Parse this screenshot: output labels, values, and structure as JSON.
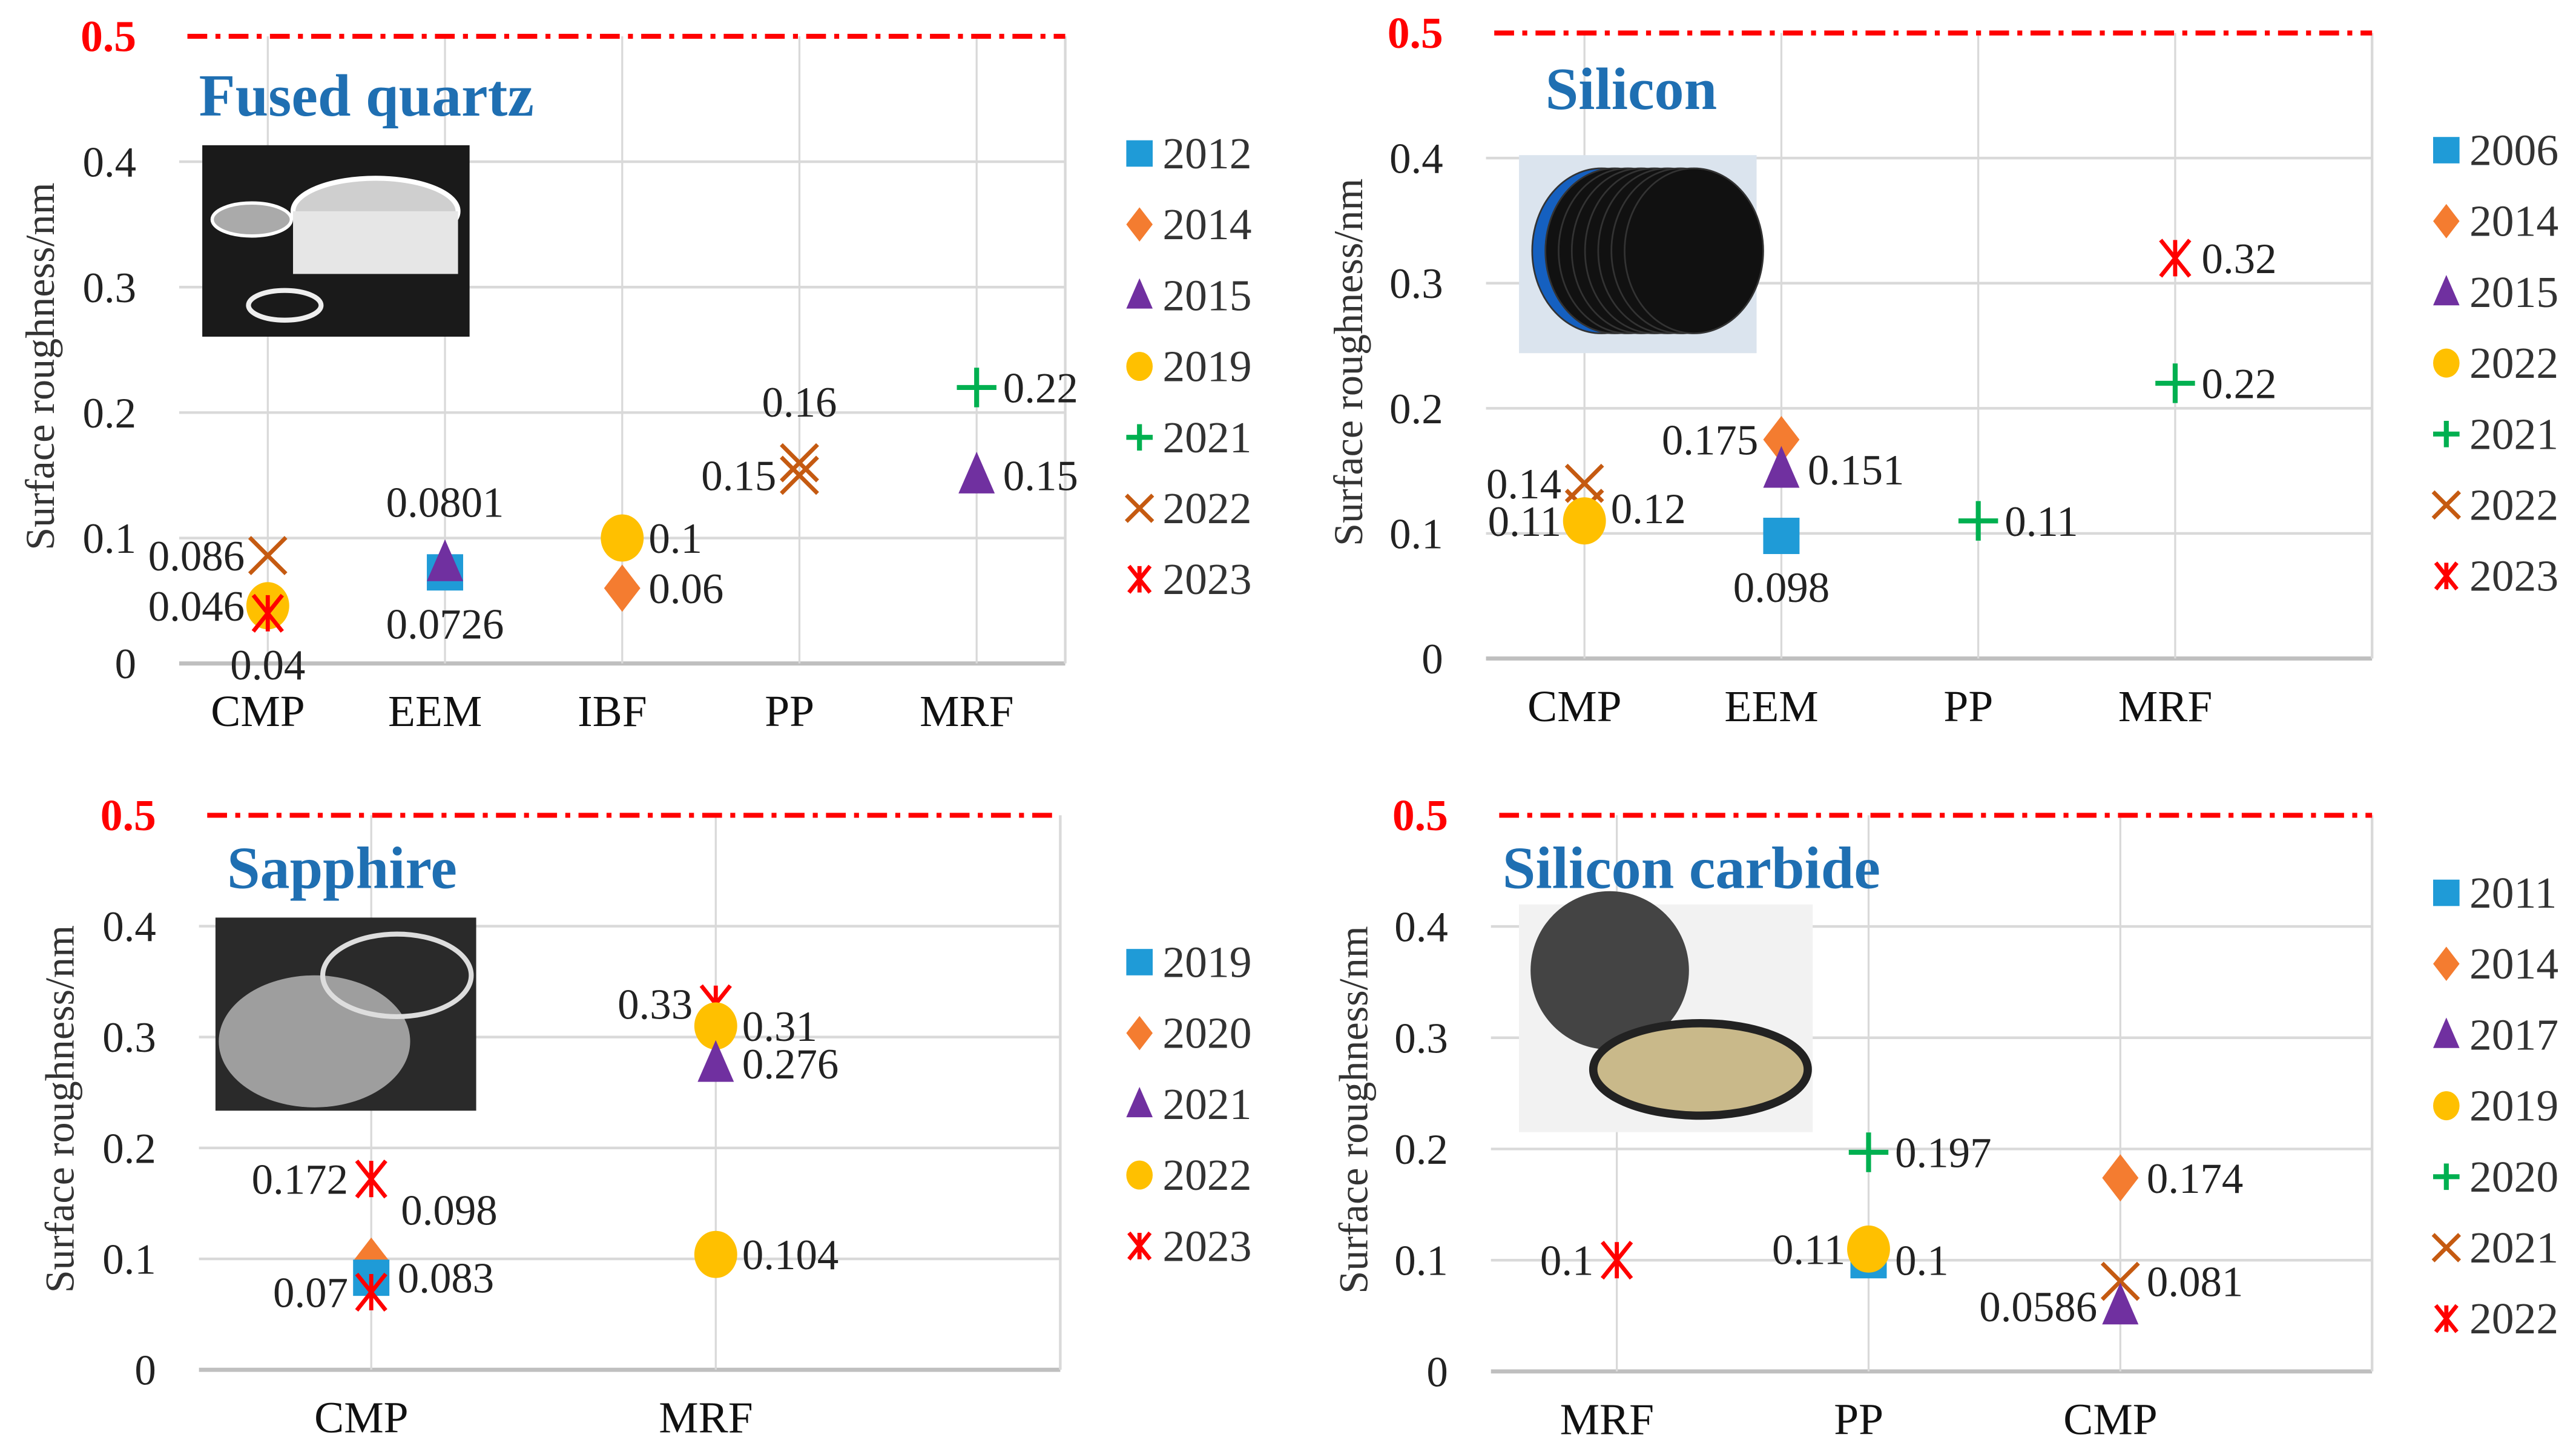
{
  "colors": {
    "2012": "#1f9bd7",
    "square": "#1f9bd7",
    "diamond": "#f47c30",
    "triangle": "#7030a0",
    "circle": "#ffc000",
    "plus": "#00b050",
    "x": "#c55a11",
    "asterisk": "#ff0000",
    "title": "#1f6fb2",
    "limit": "#ff0000",
    "grid": "#d9d9d9"
  },
  "chart_data": [
    {
      "type": "scatter",
      "title": "Fused quartz",
      "ylabel": "Surface roughness/nm",
      "ylim": [
        0,
        0.5
      ],
      "yticks": [
        "0",
        "0.1",
        "0.2",
        "0.3",
        "0.4",
        "0.5"
      ],
      "limit_line": 0.5,
      "legend_placement": "right",
      "categories": [
        "CMP",
        "EEM",
        "IBF",
        "PP",
        "MRF"
      ],
      "series": [
        {
          "name": "2012",
          "marker": "square"
        },
        {
          "name": "2014",
          "marker": "diamond"
        },
        {
          "name": "2015",
          "marker": "triangle"
        },
        {
          "name": "2019",
          "marker": "circle"
        },
        {
          "name": "2021",
          "marker": "plus"
        },
        {
          "name": "2022",
          "marker": "x"
        },
        {
          "name": "2023",
          "marker": "asterisk"
        }
      ],
      "points": [
        {
          "category": "CMP",
          "series": "2022",
          "value": 0.086,
          "label": "0.086",
          "label_side": "left"
        },
        {
          "category": "CMP",
          "series": "2019",
          "value": 0.046,
          "label": "0.046",
          "label_side": "left"
        },
        {
          "category": "CMP",
          "series": "2023",
          "value": 0.04,
          "label": "0.04",
          "label_side": "below"
        },
        {
          "category": "EEM",
          "series": "2012",
          "value": 0.0726,
          "label": "0.0726",
          "label_side": "below"
        },
        {
          "category": "EEM",
          "series": "2015",
          "value": 0.0801,
          "label": "0.0801",
          "label_side": "above"
        },
        {
          "category": "IBF",
          "series": "2019",
          "value": 0.1,
          "label": "0.1",
          "label_side": "right"
        },
        {
          "category": "IBF",
          "series": "2014",
          "value": 0.06,
          "label": "0.06",
          "label_side": "right"
        },
        {
          "category": "PP",
          "series": "2022",
          "value": 0.16,
          "label": "0.16",
          "label_side": "above"
        },
        {
          "category": "PP",
          "series": "2022",
          "value": 0.15,
          "label": "0.15",
          "label_side": "left"
        },
        {
          "category": "MRF",
          "series": "2021",
          "value": 0.22,
          "label": "0.22",
          "label_side": "right"
        },
        {
          "category": "MRF",
          "series": "2015",
          "value": 0.15,
          "label": "0.15",
          "label_side": "right"
        }
      ]
    },
    {
      "type": "scatter",
      "title": "Silicon",
      "ylabel": "Surface roughness/nm",
      "ylim": [
        0,
        0.5
      ],
      "yticks": [
        "0",
        "0.1",
        "0.2",
        "0.3",
        "0.4",
        "0.5"
      ],
      "limit_line": 0.5,
      "legend_placement": "right",
      "categories": [
        "CMP",
        "EEM",
        "PP",
        "MRF"
      ],
      "series": [
        {
          "name": "2006",
          "marker": "square"
        },
        {
          "name": "2014",
          "marker": "diamond"
        },
        {
          "name": "2015",
          "marker": "triangle"
        },
        {
          "name": "2022",
          "marker": "circle"
        },
        {
          "name": "2021",
          "marker": "plus"
        },
        {
          "name": "2022",
          "marker": "x"
        },
        {
          "name": "2023",
          "marker": "asterisk"
        }
      ],
      "points": [
        {
          "category": "CMP",
          "series_index": 5,
          "value": 0.14,
          "label": "0.14",
          "label_side": "left"
        },
        {
          "category": "CMP",
          "series_index": 5,
          "value": 0.12,
          "label": "0.12",
          "label_side": "right"
        },
        {
          "category": "CMP",
          "series_index": 3,
          "value": 0.11,
          "label": "0.11",
          "label_side": "left"
        },
        {
          "category": "EEM",
          "series_index": 1,
          "value": 0.175,
          "label": "0.175",
          "label_side": "left"
        },
        {
          "category": "EEM",
          "series_index": 2,
          "value": 0.151,
          "label": "0.151",
          "label_side": "right"
        },
        {
          "category": "EEM",
          "series_index": 0,
          "value": 0.098,
          "label": "0.098",
          "label_side": "below"
        },
        {
          "category": "PP",
          "series_index": 4,
          "value": 0.11,
          "label": "0.11",
          "label_side": "right"
        },
        {
          "category": "MRF",
          "series_index": 6,
          "value": 0.32,
          "label": "0.32",
          "label_side": "right"
        },
        {
          "category": "MRF",
          "series_index": 4,
          "value": 0.22,
          "label": "0.22",
          "label_side": "right"
        }
      ]
    },
    {
      "type": "scatter",
      "title": "Sapphire",
      "ylabel": "Surface roughness/nm",
      "ylim": [
        0,
        0.5
      ],
      "yticks": [
        "0",
        "0.1",
        "0.2",
        "0.3",
        "0.4",
        "0.5"
      ],
      "limit_line": 0.5,
      "legend_placement": "right",
      "categories": [
        "CMP",
        "MRF"
      ],
      "series": [
        {
          "name": "2019",
          "marker": "square"
        },
        {
          "name": "2020",
          "marker": "diamond"
        },
        {
          "name": "2021",
          "marker": "triangle"
        },
        {
          "name": "2022",
          "marker": "circle"
        },
        {
          "name": "2023",
          "marker": "asterisk"
        }
      ],
      "points": [
        {
          "category": "CMP",
          "series_index": 4,
          "value": 0.172,
          "label": "0.172",
          "label_side": "left"
        },
        {
          "category": "CMP",
          "series_index": 1,
          "value": 0.098,
          "label": "0.098",
          "label_side": "above-right"
        },
        {
          "category": "CMP",
          "series_index": 0,
          "value": 0.083,
          "label": "0.083",
          "label_side": "right"
        },
        {
          "category": "CMP",
          "series_index": 4,
          "value": 0.07,
          "label": "0.07",
          "label_side": "left"
        },
        {
          "category": "MRF",
          "series_index": 4,
          "value": 0.33,
          "label": "0.33",
          "label_side": "left"
        },
        {
          "category": "MRF",
          "series_index": 3,
          "value": 0.31,
          "label": "0.31",
          "label_side": "right"
        },
        {
          "category": "MRF",
          "series_index": 2,
          "value": 0.276,
          "label": "0.276",
          "label_side": "right"
        },
        {
          "category": "MRF",
          "series_index": 3,
          "value": 0.104,
          "label": "0.104",
          "label_side": "right"
        }
      ]
    },
    {
      "type": "scatter",
      "title": "Silicon carbide",
      "ylabel": "Surface roughness/nm",
      "ylim": [
        0,
        0.5
      ],
      "yticks": [
        "0",
        "0.1",
        "0.2",
        "0.3",
        "0.4",
        "0.5"
      ],
      "limit_line": 0.5,
      "legend_placement": "right",
      "categories": [
        "MRF",
        "PP",
        "CMP"
      ],
      "series": [
        {
          "name": "2011",
          "marker": "square"
        },
        {
          "name": "2014",
          "marker": "diamond"
        },
        {
          "name": "2017",
          "marker": "triangle"
        },
        {
          "name": "2019",
          "marker": "circle"
        },
        {
          "name": "2020",
          "marker": "plus"
        },
        {
          "name": "2021",
          "marker": "x"
        },
        {
          "name": "2022",
          "marker": "asterisk"
        }
      ],
      "points": [
        {
          "category": "MRF",
          "series_index": 6,
          "value": 0.1,
          "label": "0.1",
          "label_side": "left"
        },
        {
          "category": "PP",
          "series_index": 4,
          "value": 0.197,
          "label": "0.197",
          "label_side": "right"
        },
        {
          "category": "PP",
          "series_index": 0,
          "value": 0.1,
          "label": "0.1",
          "label_side": "right"
        },
        {
          "category": "PP",
          "series_index": 3,
          "value": 0.11,
          "label": "0.11",
          "label_side": "left"
        },
        {
          "category": "CMP",
          "series_index": 1,
          "value": 0.174,
          "label": "0.174",
          "label_side": "right"
        },
        {
          "category": "CMP",
          "series_index": 5,
          "value": 0.081,
          "label": "0.081",
          "label_side": "right"
        },
        {
          "category": "CMP",
          "series_index": 2,
          "value": 0.0586,
          "label": "0.0586",
          "label_side": "left"
        }
      ]
    }
  ]
}
